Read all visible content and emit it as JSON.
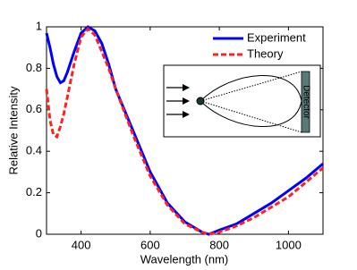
{
  "chart_data": {
    "type": "line",
    "xlabel": "Wavelength (nm)",
    "ylabel": "Relative Intensity",
    "x": [
      300,
      310,
      320,
      330,
      340,
      350,
      360,
      380,
      400,
      420,
      440,
      460,
      480,
      500,
      550,
      600,
      650,
      700,
      750,
      770,
      800,
      850,
      900,
      950,
      1000,
      1050,
      1100
    ],
    "series": [
      {
        "name": "Experiment",
        "color": "#0000ff",
        "dash": false,
        "values": [
          0.97,
          0.9,
          0.82,
          0.76,
          0.73,
          0.74,
          0.78,
          0.88,
          0.97,
          1.0,
          0.98,
          0.92,
          0.82,
          0.7,
          0.5,
          0.3,
          0.15,
          0.06,
          0.01,
          0.0,
          0.02,
          0.05,
          0.1,
          0.15,
          0.21,
          0.27,
          0.34
        ]
      },
      {
        "name": "Theory",
        "color": "#ff2020",
        "dash": true,
        "values": [
          0.7,
          0.55,
          0.48,
          0.47,
          0.52,
          0.58,
          0.66,
          0.82,
          0.95,
          0.99,
          0.96,
          0.88,
          0.8,
          0.7,
          0.48,
          0.28,
          0.14,
          0.05,
          0.01,
          0.0,
          0.01,
          0.04,
          0.08,
          0.13,
          0.18,
          0.25,
          0.32
        ]
      }
    ],
    "xlim": [
      300,
      1100
    ],
    "xticks": [
      400,
      600,
      800,
      1000
    ],
    "ylim": [
      0,
      1
    ],
    "yticks": [
      0,
      0.2,
      0.4,
      0.6,
      0.8,
      1
    ],
    "legend": "upper-right",
    "grid": false,
    "inset_label": "Detector"
  }
}
